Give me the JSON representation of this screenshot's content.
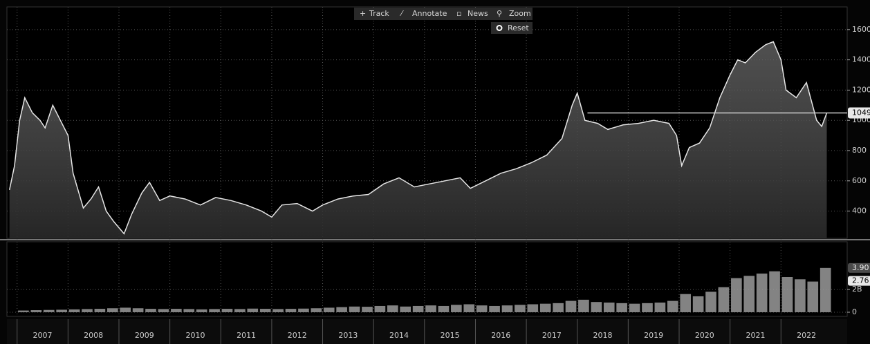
{
  "toolbar": {
    "track": "Track",
    "annotate": "Annotate",
    "news": "News",
    "zoom": "Zoom",
    "reset": "Reset"
  },
  "chart_data": [
    {
      "type": "line",
      "xlim": [
        2006.8,
        2023.3
      ],
      "ylim": [
        220,
        1750
      ],
      "yticks": [
        400,
        600,
        800,
        1000,
        1200,
        1400,
        1600
      ],
      "xticks": [
        {
          "value": 2007,
          "label": "2007"
        },
        {
          "value": 2008,
          "label": "2008"
        },
        {
          "value": 2009,
          "label": "2009"
        },
        {
          "value": 2010,
          "label": "2010"
        },
        {
          "value": 2011,
          "label": "2011"
        },
        {
          "value": 2012,
          "label": "2012"
        },
        {
          "value": 2013,
          "label": "2013"
        },
        {
          "value": 2014,
          "label": "2014"
        },
        {
          "value": 2015,
          "label": "2015"
        },
        {
          "value": 2016,
          "label": "2016"
        },
        {
          "value": 2017,
          "label": "2017"
        },
        {
          "value": 2018,
          "label": "2018"
        },
        {
          "value": 2019,
          "label": "2019"
        },
        {
          "value": 2020,
          "label": "2020"
        },
        {
          "value": 2021,
          "label": "2021"
        },
        {
          "value": 2022,
          "label": "2022"
        }
      ],
      "grid": true,
      "color": "#e6e6e6",
      "x": [
        2006.85,
        2006.95,
        2007.05,
        2007.15,
        2007.3,
        2007.45,
        2007.55,
        2007.7,
        2007.85,
        2008.0,
        2008.1,
        2008.3,
        2008.45,
        2008.6,
        2008.75,
        2008.9,
        2009.1,
        2009.25,
        2009.45,
        2009.6,
        2009.8,
        2010.0,
        2010.3,
        2010.6,
        2010.9,
        2011.2,
        2011.5,
        2011.8,
        2012.0,
        2012.2,
        2012.5,
        2012.8,
        2013.0,
        2013.3,
        2013.6,
        2013.9,
        2014.2,
        2014.5,
        2014.8,
        2015.1,
        2015.4,
        2015.7,
        2015.9,
        2016.2,
        2016.5,
        2016.8,
        2017.1,
        2017.4,
        2017.7,
        2017.9,
        2018.0,
        2018.15,
        2018.4,
        2018.6,
        2018.9,
        2019.2,
        2019.5,
        2019.8,
        2019.95,
        2020.05,
        2020.2,
        2020.4,
        2020.6,
        2020.8,
        2021.0,
        2021.15,
        2021.3,
        2021.5,
        2021.7,
        2021.85,
        2022.0,
        2022.1,
        2022.3,
        2022.5,
        2022.7,
        2022.8,
        2022.9
      ],
      "values": [
        540,
        700,
        1000,
        1150,
        1050,
        1000,
        950,
        1100,
        1000,
        900,
        650,
        420,
        480,
        560,
        400,
        330,
        250,
        380,
        520,
        590,
        470,
        500,
        480,
        440,
        490,
        470,
        440,
        400,
        360,
        440,
        450,
        400,
        440,
        480,
        500,
        510,
        580,
        620,
        560,
        580,
        600,
        620,
        550,
        600,
        650,
        680,
        720,
        770,
        880,
        1100,
        1180,
        1000,
        980,
        940,
        970,
        980,
        1000,
        980,
        900,
        700,
        820,
        850,
        950,
        1150,
        1300,
        1400,
        1380,
        1450,
        1500,
        1520,
        1400,
        1200,
        1150,
        1250,
        1000,
        960,
        1049
      ],
      "reference": {
        "value": 1049,
        "start": 2018.2
      }
    },
    {
      "type": "bar",
      "ylim": [
        0,
        6.2
      ],
      "yticks": [
        0,
        {
          "value": 2,
          "label": "2B"
        }
      ],
      "color": "#9a9a9a",
      "markers": [
        {
          "value": 3.9,
          "label": "3.90"
        },
        {
          "value": 2.76,
          "label": "2.76"
        }
      ],
      "x": [
        2007.125,
        2007.375,
        2007.625,
        2007.875,
        2008.125,
        2008.375,
        2008.625,
        2008.875,
        2009.125,
        2009.375,
        2009.625,
        2009.875,
        2010.125,
        2010.375,
        2010.625,
        2010.875,
        2011.125,
        2011.375,
        2011.625,
        2011.875,
        2012.125,
        2012.375,
        2012.625,
        2012.875,
        2013.125,
        2013.375,
        2013.625,
        2013.875,
        2014.125,
        2014.375,
        2014.625,
        2014.875,
        2015.125,
        2015.375,
        2015.625,
        2015.875,
        2016.125,
        2016.375,
        2016.625,
        2016.875,
        2017.125,
        2017.375,
        2017.625,
        2017.875,
        2018.125,
        2018.375,
        2018.625,
        2018.875,
        2019.125,
        2019.375,
        2019.625,
        2019.875,
        2020.125,
        2020.375,
        2020.625,
        2020.875,
        2021.125,
        2021.375,
        2021.625,
        2021.875,
        2022.125,
        2022.375,
        2022.625,
        2022.875
      ],
      "values": [
        0.15,
        0.18,
        0.2,
        0.22,
        0.25,
        0.28,
        0.3,
        0.35,
        0.4,
        0.35,
        0.3,
        0.28,
        0.3,
        0.28,
        0.25,
        0.28,
        0.3,
        0.28,
        0.32,
        0.3,
        0.28,
        0.3,
        0.32,
        0.35,
        0.4,
        0.45,
        0.5,
        0.48,
        0.55,
        0.6,
        0.5,
        0.55,
        0.6,
        0.55,
        0.65,
        0.7,
        0.6,
        0.55,
        0.6,
        0.65,
        0.7,
        0.75,
        0.8,
        1.0,
        1.1,
        0.9,
        0.85,
        0.8,
        0.75,
        0.8,
        0.85,
        1.0,
        1.6,
        1.4,
        1.8,
        2.2,
        3.0,
        3.2,
        3.4,
        3.6,
        3.1,
        2.9,
        2.7,
        3.9
      ]
    }
  ]
}
